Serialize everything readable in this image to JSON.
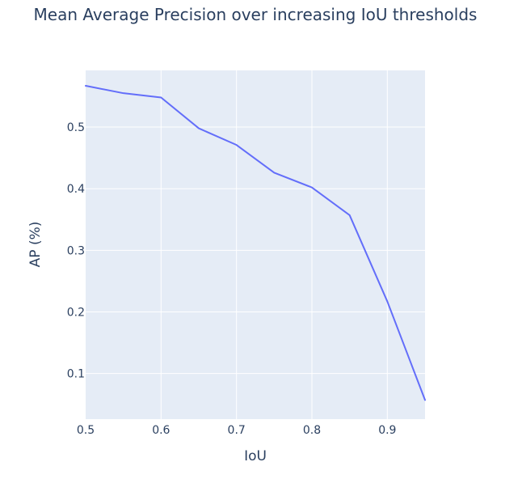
{
  "chart_data": {
    "type": "line",
    "title": "Mean Average Precision over increasing IoU thresholds",
    "xlabel": "IoU",
    "ylabel": "AP (%)",
    "xlim": [
      0.5,
      0.95
    ],
    "ylim": [
      0.026,
      0.592
    ],
    "xticks": [
      0.5,
      0.6,
      0.7,
      0.8,
      0.9
    ],
    "xtick_labels": [
      "0.5",
      "0.6",
      "0.7",
      "0.8",
      "0.9"
    ],
    "yticks": [
      0.1,
      0.2,
      0.3,
      0.4,
      0.5
    ],
    "ytick_labels": [
      "0.1",
      "0.2",
      "0.3",
      "0.4",
      "0.5"
    ],
    "grid": true,
    "series": [
      {
        "x": [
          0.5,
          0.55,
          0.6,
          0.65,
          0.7,
          0.75,
          0.8,
          0.85,
          0.9,
          0.95
        ],
        "y": [
          0.567,
          0.555,
          0.548,
          0.498,
          0.471,
          0.426,
          0.402,
          0.357,
          0.217,
          0.057
        ],
        "color": "#636efa"
      }
    ],
    "colors": {
      "plot_bg": "#e5ecf6",
      "grid": "#ffffff",
      "text": "#2a3f5f",
      "line": "#636efa"
    }
  }
}
